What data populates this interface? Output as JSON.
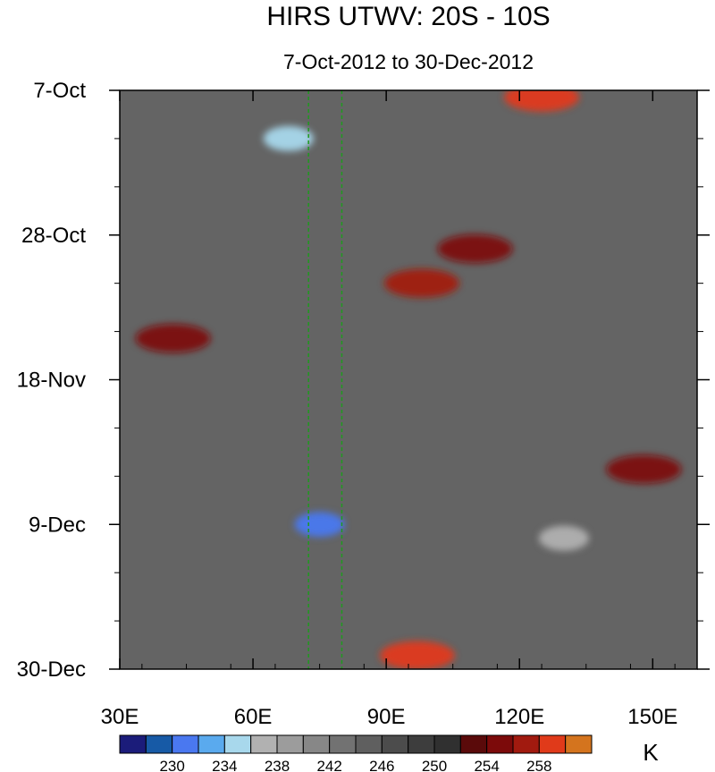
{
  "chart_data": {
    "type": "heatmap",
    "title": "HIRS UTWV: 20S - 10S",
    "subtitle": "7-Oct-2012 to 30-Dec-2012",
    "x_ticks": [
      30,
      60,
      90,
      120,
      150
    ],
    "x_tick_labels": [
      "30E",
      "60E",
      "90E",
      "120E",
      "150E"
    ],
    "xlim": [
      30,
      160
    ],
    "y_ticks": [
      "2012-10-07",
      "2012-10-28",
      "2012-11-18",
      "2012-12-09",
      "2012-12-30"
    ],
    "y_tick_labels": [
      "7-Oct",
      "28-Oct",
      "18-Nov",
      "9-Dec",
      "30-Dec"
    ],
    "ylim": [
      "2012-10-07",
      "2012-12-30"
    ],
    "reference_lines_lon": [
      72.5,
      80
    ],
    "colorbar": {
      "unit_label": "K",
      "levels": [
        228,
        230,
        232,
        234,
        236,
        238,
        240,
        242,
        244,
        246,
        248,
        250,
        252,
        254,
        256,
        258
      ],
      "labeled_levels": [
        "230",
        "234",
        "238",
        "242",
        "246",
        "250",
        "254",
        "258"
      ],
      "colors": [
        "#1b1c7a",
        "#175aa6",
        "#4a78f0",
        "#5aaaee",
        "#a8d8ec",
        "#b1b1b1",
        "#9c9c9c",
        "#878787",
        "#727272",
        "#5f5f5f",
        "#4c4c4c",
        "#3d3d3d",
        "#303030",
        "#5a0a0a",
        "#7c0a0a",
        "#a11a0f",
        "#e03a1a",
        "#d4741e"
      ]
    },
    "features": [
      {
        "lon": 125,
        "date": "2012-10-08",
        "value": 258
      },
      {
        "lon": 68,
        "date": "2012-10-14",
        "value": 234
      },
      {
        "lon": 75,
        "date": "2012-12-09",
        "value": 230
      },
      {
        "lon": 97,
        "date": "2012-12-28",
        "value": 258
      },
      {
        "lon": 98,
        "date": "2012-11-04",
        "value": 256
      },
      {
        "lon": 42,
        "date": "2012-11-12",
        "value": 254
      },
      {
        "lon": 148,
        "date": "2012-12-01",
        "value": 254
      },
      {
        "lon": 130,
        "date": "2012-12-11",
        "value": 236
      },
      {
        "lon": 110,
        "date": "2012-10-30",
        "value": 254
      }
    ]
  }
}
